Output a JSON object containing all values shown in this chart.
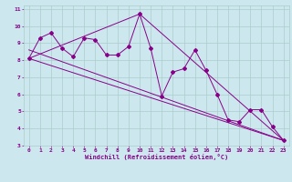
{
  "xlabel": "Windchill (Refroidissement éolien,°C)",
  "background_color": "#cce8ee",
  "grid_color": "#aacccc",
  "line_color": "#880088",
  "xlim": [
    -0.5,
    23.5
  ],
  "ylim": [
    3,
    11.2
  ],
  "xticks": [
    0,
    1,
    2,
    3,
    4,
    5,
    6,
    7,
    8,
    9,
    10,
    11,
    12,
    13,
    14,
    15,
    16,
    17,
    18,
    19,
    20,
    21,
    22,
    23
  ],
  "yticks": [
    3,
    4,
    5,
    6,
    7,
    8,
    9,
    10,
    11
  ],
  "series1_x": [
    0,
    1,
    2,
    3,
    4,
    5,
    6,
    7,
    8,
    9,
    10,
    11,
    12,
    13,
    14,
    15,
    16,
    17,
    18,
    19,
    20,
    21,
    22,
    23
  ],
  "series1_y": [
    8.1,
    9.3,
    9.6,
    8.7,
    8.2,
    9.3,
    9.2,
    8.3,
    8.3,
    8.8,
    10.7,
    8.7,
    5.9,
    7.3,
    7.5,
    8.6,
    7.4,
    6.0,
    4.5,
    4.4,
    5.1,
    5.1,
    4.1,
    3.3
  ],
  "line1_x": [
    0,
    23
  ],
  "line1_y": [
    8.1,
    3.3
  ],
  "line2_x": [
    0,
    10,
    23
  ],
  "line2_y": [
    8.1,
    10.7,
    3.3
  ],
  "line3_x": [
    0,
    23
  ],
  "line3_y": [
    8.6,
    3.3
  ]
}
